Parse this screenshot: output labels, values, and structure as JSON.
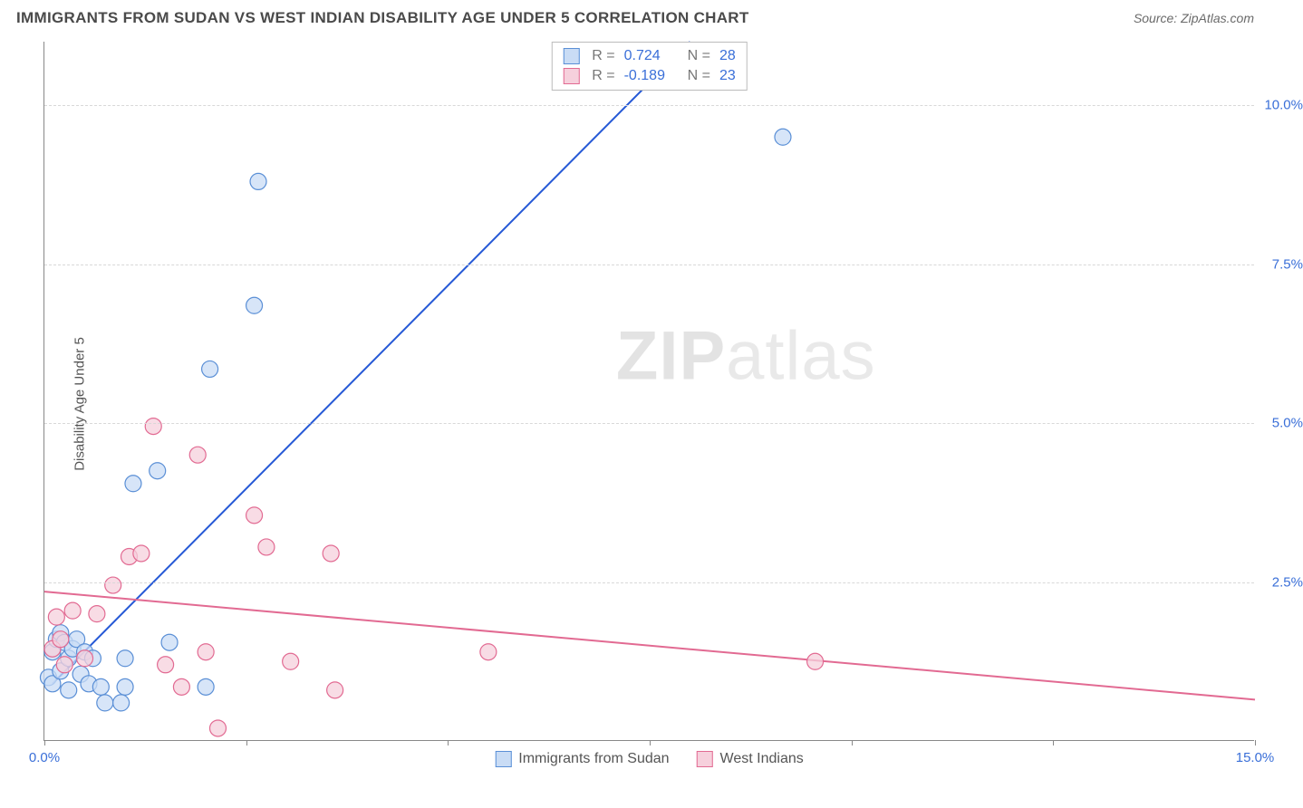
{
  "header": {
    "title": "IMMIGRANTS FROM SUDAN VS WEST INDIAN DISABILITY AGE UNDER 5 CORRELATION CHART",
    "source_prefix": "Source: ",
    "source_name": "ZipAtlas.com"
  },
  "chart": {
    "type": "scatter",
    "y_label": "Disability Age Under 5",
    "watermark_bold": "ZIP",
    "watermark_rest": "atlas",
    "background_color": "#ffffff",
    "grid_color": "#d8d8d8",
    "axis_color": "#888888",
    "x_axis": {
      "min": 0,
      "max": 15,
      "tick_step": 2.5,
      "label_left": "0.0%",
      "label_right": "15.0%"
    },
    "y_axis": {
      "min": 0,
      "max": 11,
      "ticks": [
        2.5,
        5.0,
        7.5,
        10.0
      ],
      "tick_labels": [
        "2.5%",
        "5.0%",
        "7.5%",
        "10.0%"
      ]
    },
    "series": [
      {
        "name": "Immigrants from Sudan",
        "color_fill": "#c9dcf5",
        "color_stroke": "#5a8fd6",
        "line_color": "#2659d6",
        "line_width": 2,
        "marker_radius": 9,
        "marker_opacity": 0.75,
        "R": "0.724",
        "N": "28",
        "trend": {
          "x1": 0.1,
          "y1": 0.9,
          "x2": 8.0,
          "y2": 11.0
        },
        "points": [
          [
            0.05,
            1.0
          ],
          [
            0.1,
            1.4
          ],
          [
            0.1,
            0.9
          ],
          [
            0.15,
            1.6
          ],
          [
            0.2,
            1.7
          ],
          [
            0.2,
            1.1
          ],
          [
            0.25,
            1.55
          ],
          [
            0.3,
            1.3
          ],
          [
            0.3,
            0.8
          ],
          [
            0.35,
            1.45
          ],
          [
            0.4,
            1.6
          ],
          [
            0.45,
            1.05
          ],
          [
            0.5,
            1.4
          ],
          [
            0.55,
            0.9
          ],
          [
            0.6,
            1.3
          ],
          [
            0.7,
            0.85
          ],
          [
            0.75,
            0.6
          ],
          [
            0.95,
            0.6
          ],
          [
            1.0,
            1.3
          ],
          [
            1.0,
            0.85
          ],
          [
            1.4,
            4.25
          ],
          [
            1.55,
            1.55
          ],
          [
            2.0,
            0.85
          ],
          [
            2.05,
            5.85
          ],
          [
            2.6,
            6.85
          ],
          [
            2.65,
            8.8
          ],
          [
            1.1,
            4.05
          ],
          [
            9.15,
            9.5
          ]
        ]
      },
      {
        "name": "West Indians",
        "color_fill": "#f6d0dc",
        "color_stroke": "#e26a92",
        "line_color": "#e26a92",
        "line_width": 2,
        "marker_radius": 9,
        "marker_opacity": 0.75,
        "R": "-0.189",
        "N": "23",
        "trend": {
          "x1": 0.0,
          "y1": 2.35,
          "x2": 15.0,
          "y2": 0.65
        },
        "points": [
          [
            0.1,
            1.45
          ],
          [
            0.15,
            1.95
          ],
          [
            0.2,
            1.6
          ],
          [
            0.25,
            1.2
          ],
          [
            0.35,
            2.05
          ],
          [
            0.5,
            1.3
          ],
          [
            0.65,
            2.0
          ],
          [
            0.85,
            2.45
          ],
          [
            1.05,
            2.9
          ],
          [
            1.2,
            2.95
          ],
          [
            1.35,
            4.95
          ],
          [
            1.7,
            0.85
          ],
          [
            1.9,
            4.5
          ],
          [
            2.0,
            1.4
          ],
          [
            2.15,
            0.2
          ],
          [
            2.6,
            3.55
          ],
          [
            2.75,
            3.05
          ],
          [
            3.05,
            1.25
          ],
          [
            3.55,
            2.95
          ],
          [
            3.6,
            0.8
          ],
          [
            5.5,
            1.4
          ],
          [
            9.55,
            1.25
          ],
          [
            1.5,
            1.2
          ]
        ]
      }
    ],
    "legend": [
      {
        "label": "Immigrants from Sudan",
        "swatch": "blue"
      },
      {
        "label": "West Indians",
        "swatch": "pink"
      }
    ],
    "stats_box": {
      "rows": [
        {
          "swatch": "blue",
          "r_label": "R =",
          "r_val": "0.724",
          "n_label": "N =",
          "n_val": "28"
        },
        {
          "swatch": "pink",
          "r_label": "R =",
          "r_val": "-0.189",
          "n_label": "N =",
          "n_val": "23"
        }
      ]
    }
  }
}
